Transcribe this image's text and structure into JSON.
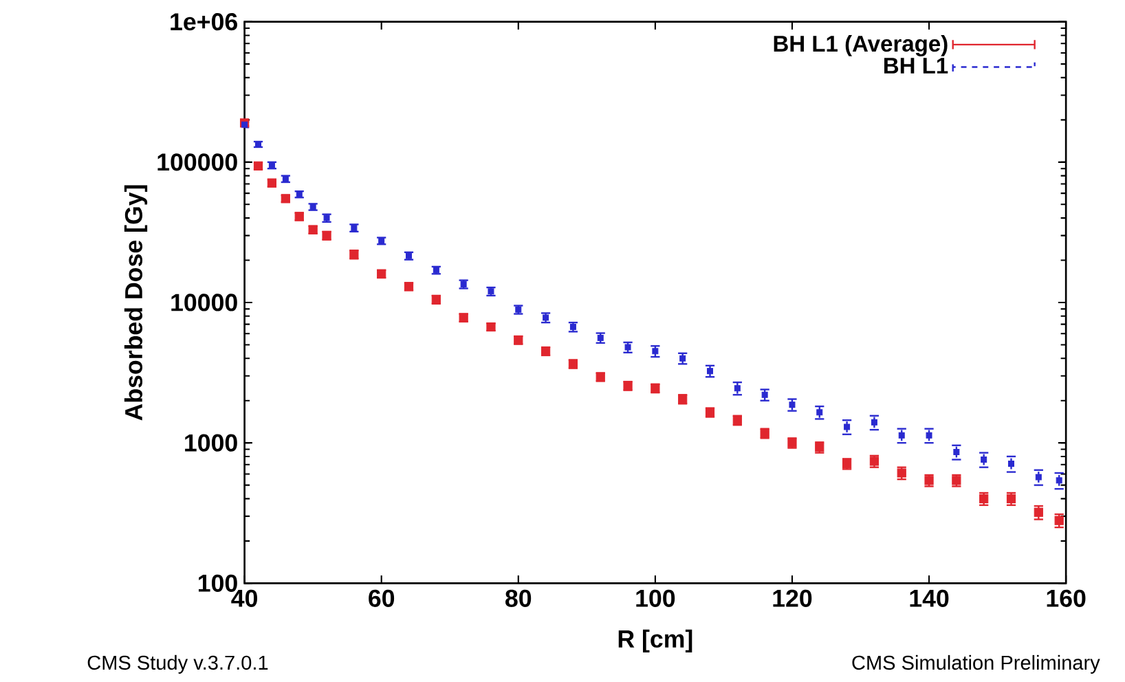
{
  "chart_data": {
    "type": "scatter",
    "xlabel": "R [cm]",
    "ylabel": "Absorbed Dose [Gy]",
    "annotations": [
      "CMS Study v.3.7.0.1",
      "CMS Simulation Preliminary"
    ],
    "x": [
      40,
      42,
      44,
      46,
      48,
      50,
      52,
      56,
      60,
      64,
      68,
      72,
      76,
      80,
      84,
      88,
      92,
      96,
      100,
      104,
      108,
      112,
      116,
      120,
      124,
      128,
      132,
      136,
      140,
      144,
      148,
      152,
      156,
      159
    ],
    "series": [
      {
        "name": "BH L1 (Average)",
        "color": "#e0262e",
        "line_style": "solid",
        "values": [
          190000,
          94000,
          71000,
          55000,
          41000,
          33000,
          30000,
          22000,
          16000,
          13000,
          10500,
          7800,
          6700,
          5400,
          4500,
          3650,
          2950,
          2550,
          2450,
          2050,
          1650,
          1450,
          1170,
          1000,
          930,
          710,
          740,
          610,
          540,
          540,
          400,
          400,
          320,
          280
        ],
        "errors": [
          8000,
          5000,
          4000,
          3000,
          2500,
          2000,
          2000,
          1500,
          1000,
          800,
          700,
          500,
          400,
          350,
          300,
          250,
          200,
          180,
          170,
          150,
          120,
          110,
          90,
          80,
          80,
          60,
          70,
          60,
          50,
          50,
          40,
          40,
          35,
          30
        ]
      },
      {
        "name": "BH L1",
        "color": "#2a2ad0",
        "line_style": "dashed",
        "values": [
          185000,
          134000,
          95000,
          76000,
          59000,
          48000,
          40000,
          34000,
          27500,
          21500,
          17000,
          13500,
          12000,
          8900,
          7800,
          6700,
          5600,
          4800,
          4500,
          4000,
          3250,
          2450,
          2200,
          1870,
          1650,
          1300,
          1400,
          1130,
          1130,
          860,
          760,
          710,
          570,
          540
        ],
        "errors": [
          8000,
          6000,
          5000,
          4000,
          3000,
          2500,
          2500,
          2000,
          1500,
          1300,
          1000,
          900,
          800,
          600,
          600,
          500,
          450,
          400,
          400,
          350,
          300,
          250,
          200,
          180,
          170,
          150,
          160,
          130,
          130,
          100,
          90,
          90,
          70,
          70
        ]
      }
    ],
    "xlim": [
      40,
      160
    ],
    "xticks": [
      40,
      60,
      80,
      100,
      120,
      140,
      160
    ],
    "ylim": [
      100,
      1000000
    ],
    "yticks": [
      100,
      1000,
      10000,
      100000,
      {
        "value": 1000000,
        "label": "1e+06"
      }
    ],
    "log": "y",
    "marker": "square",
    "legend": "top right",
    "grid": false
  }
}
